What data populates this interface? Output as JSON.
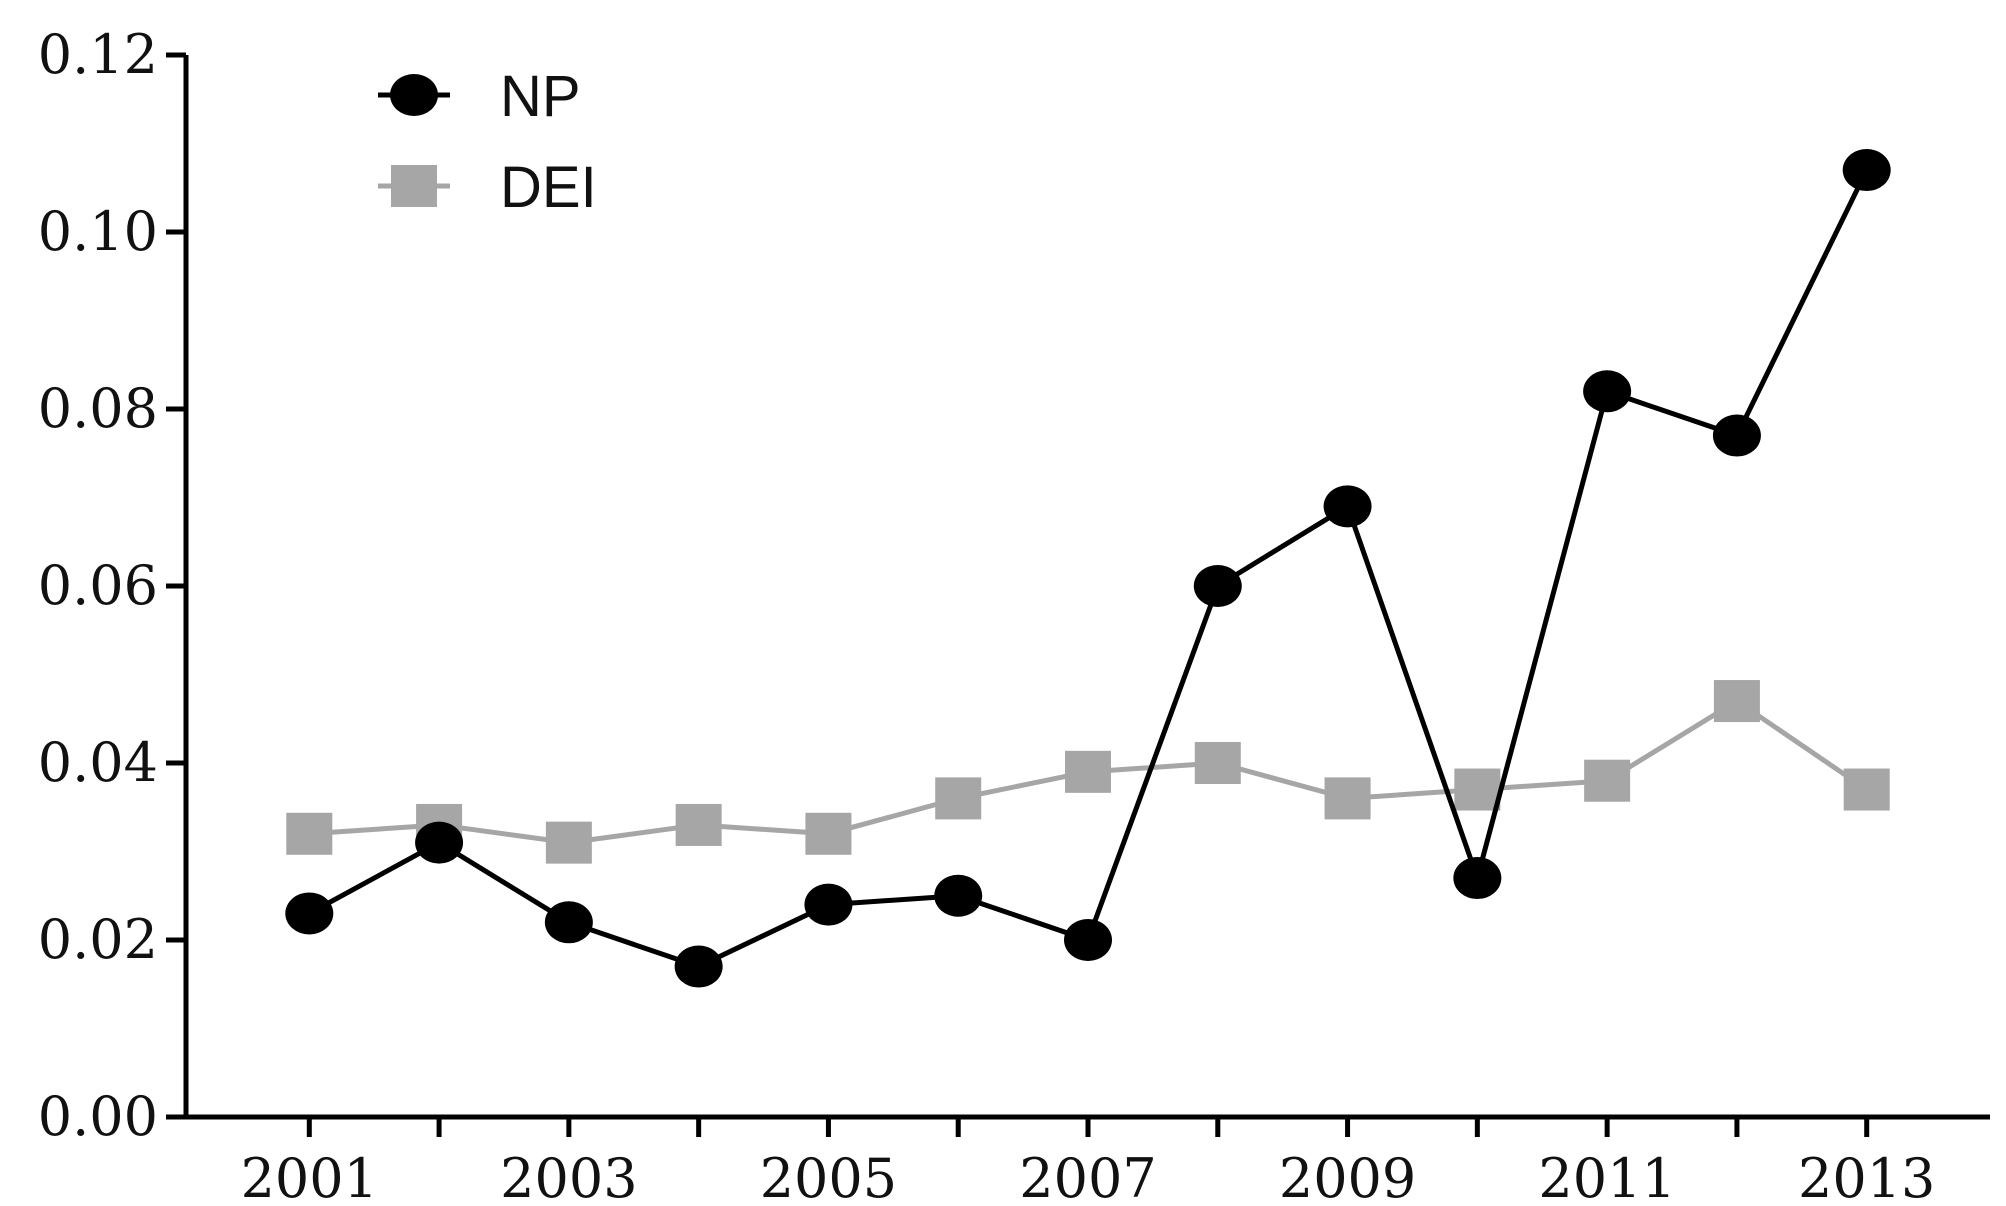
{
  "chart_data": {
    "type": "line",
    "x": [
      2001,
      2002,
      2003,
      2004,
      2005,
      2006,
      2007,
      2008,
      2009,
      2010,
      2011,
      2012,
      2013
    ],
    "x_tick_labels": [
      "2001",
      "2003",
      "2005",
      "2007",
      "2009",
      "2011",
      "2013"
    ],
    "y_tick_labels": [
      "0.00",
      "0.02",
      "0.04",
      "0.06",
      "0.08",
      "0.10",
      "0.12"
    ],
    "ylim": [
      0,
      0.12
    ],
    "xlim": [
      2000.05,
      2013.95
    ],
    "grid": false,
    "legend_position": "top-left",
    "series": [
      {
        "name": "NP",
        "color": "#000000",
        "marker": "circle",
        "values": [
          0.023,
          0.031,
          0.022,
          0.017,
          0.024,
          0.025,
          0.02,
          0.06,
          0.069,
          0.027,
          0.082,
          0.077,
          0.107
        ]
      },
      {
        "name": "DEI",
        "color": "#a6a6a6",
        "marker": "square",
        "values": [
          0.032,
          0.033,
          0.031,
          0.033,
          0.032,
          0.036,
          0.039,
          0.04,
          0.036,
          0.037,
          0.038,
          0.047,
          0.037
        ]
      }
    ]
  }
}
